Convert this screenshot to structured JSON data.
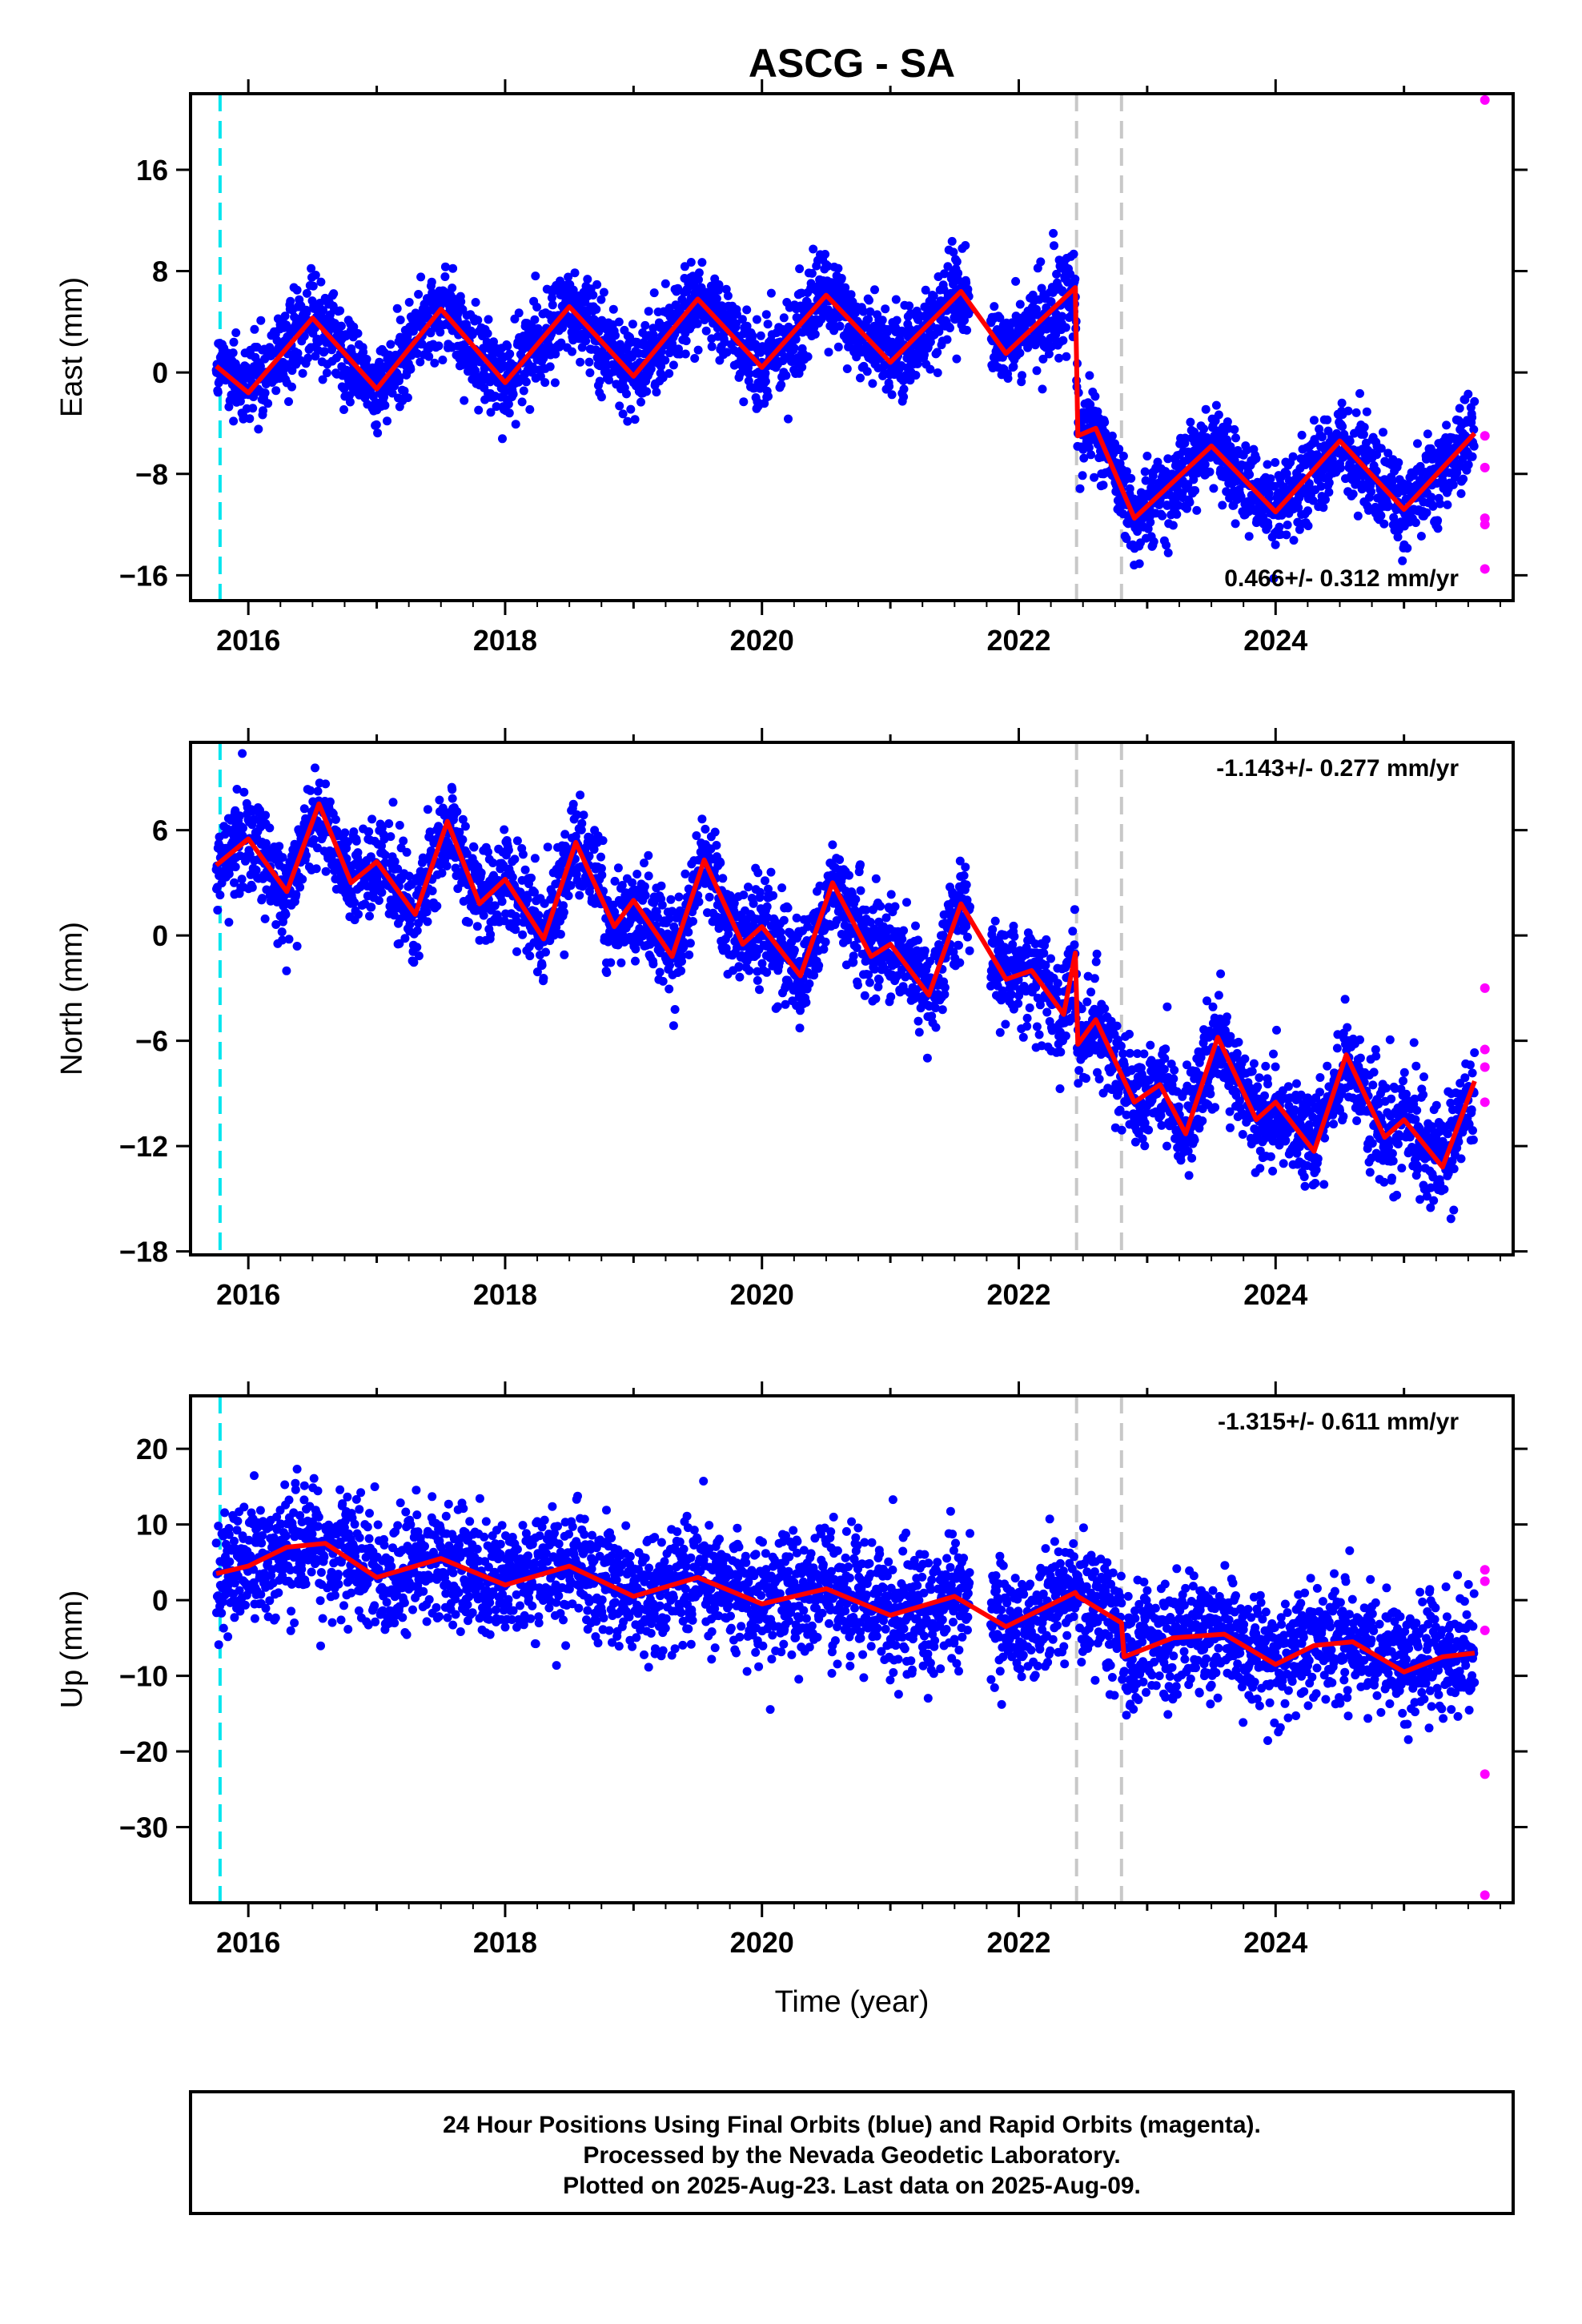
{
  "title": "ASCG - SA",
  "xlabel": "Time (year)",
  "caption": [
    "24 Hour Positions Using Final Orbits (blue) and Rapid Orbits (magenta).",
    "Processed by the Nevada Geodetic Laboratory.",
    "Plotted on 2025-Aug-23. Last data on 2025-Aug-09."
  ],
  "colors": {
    "final": "#0000ff",
    "rapid": "#ff00ff",
    "model": "#ff0000",
    "antenna_change": "#00e5ee",
    "equipment_change": "#c8c8c8"
  },
  "chart_data": [
    {
      "type": "scatter",
      "name": "east",
      "ylabel": "East (mm)",
      "rate_text": "0.466+/- 0.312 mm/yr",
      "xlim": [
        2015.55,
        2025.85
      ],
      "ylim": [
        -18,
        22
      ],
      "xticks": [
        2016,
        2018,
        2020,
        2022,
        2024
      ],
      "yticks": [
        -16,
        -8,
        0,
        8,
        16
      ],
      "antenna_change_x": [
        2015.78
      ],
      "equipment_change_x": [
        2022.45,
        2022.8
      ],
      "final_start": 2015.75,
      "final_end": 2025.55,
      "gap": [
        2021.62,
        2021.78
      ],
      "trend_rate": 0.55,
      "noise_sd": 1.7,
      "annual_amp": 3.1,
      "annual_phase": 0.35,
      "semiannual_amp": 0.6,
      "model_points": [
        [
          2015.75,
          0.5
        ],
        [
          2016.0,
          -1.6
        ],
        [
          2016.5,
          4.3
        ],
        [
          2017.0,
          -1.3
        ],
        [
          2017.5,
          5.0
        ],
        [
          2018.0,
          -0.8
        ],
        [
          2018.5,
          5.2
        ],
        [
          2019.0,
          -0.3
        ],
        [
          2019.5,
          5.8
        ],
        [
          2020.0,
          0.4
        ],
        [
          2020.5,
          6.1
        ],
        [
          2021.0,
          0.8
        ],
        [
          2021.55,
          6.4
        ],
        [
          2021.9,
          1.5
        ],
        [
          2022.44,
          6.7
        ],
        [
          2022.46,
          -5.0
        ],
        [
          2022.6,
          -4.4
        ],
        [
          2022.9,
          -11.5
        ],
        [
          2023.5,
          -5.8
        ],
        [
          2024.0,
          -11.0
        ],
        [
          2024.5,
          -5.4
        ],
        [
          2025.0,
          -10.8
        ],
        [
          2025.55,
          -4.8
        ]
      ],
      "rapid": [
        [
          2025.63,
          21.5
        ],
        [
          2025.63,
          -5.0
        ],
        [
          2025.63,
          -7.5
        ],
        [
          2025.63,
          -11.5
        ],
        [
          2025.63,
          -12.0
        ],
        [
          2025.63,
          -15.5
        ]
      ]
    },
    {
      "type": "scatter",
      "name": "north",
      "ylabel": "North (mm)",
      "rate_text": "-1.143+/- 0.277 mm/yr",
      "xlim": [
        2015.55,
        2025.85
      ],
      "ylim": [
        -18.2,
        11
      ],
      "xticks": [
        2016,
        2018,
        2020,
        2022,
        2024
      ],
      "yticks": [
        -18,
        -12,
        -6,
        0,
        6
      ],
      "antenna_change_x": [
        2015.78
      ],
      "equipment_change_x": [
        2022.45,
        2022.8
      ],
      "final_start": 2015.75,
      "final_end": 2025.55,
      "gap": [
        2021.62,
        2021.78
      ],
      "trend_rate": -1.1,
      "noise_sd": 1.4,
      "annual_amp": 2.4,
      "annual_phase": 0.25,
      "semiannual_amp": 1.0,
      "model_points": [
        [
          2015.75,
          4.0
        ],
        [
          2016.0,
          5.5
        ],
        [
          2016.3,
          2.5
        ],
        [
          2016.55,
          7.5
        ],
        [
          2016.8,
          3.0
        ],
        [
          2017.0,
          4.2
        ],
        [
          2017.3,
          1.2
        ],
        [
          2017.55,
          6.5
        ],
        [
          2017.8,
          1.8
        ],
        [
          2018.0,
          3.2
        ],
        [
          2018.3,
          -0.2
        ],
        [
          2018.55,
          5.3
        ],
        [
          2018.85,
          0.5
        ],
        [
          2019.0,
          2.0
        ],
        [
          2019.3,
          -1.2
        ],
        [
          2019.55,
          4.3
        ],
        [
          2019.85,
          -0.5
        ],
        [
          2020.0,
          0.5
        ],
        [
          2020.3,
          -2.3
        ],
        [
          2020.55,
          3.0
        ],
        [
          2020.85,
          -1.2
        ],
        [
          2021.0,
          -0.5
        ],
        [
          2021.3,
          -3.4
        ],
        [
          2021.55,
          1.8
        ],
        [
          2021.9,
          -2.5
        ],
        [
          2022.1,
          -2.0
        ],
        [
          2022.35,
          -4.5
        ],
        [
          2022.44,
          -1.0
        ],
        [
          2022.46,
          -6.2
        ],
        [
          2022.6,
          -4.8
        ],
        [
          2022.9,
          -9.5
        ],
        [
          2023.1,
          -8.5
        ],
        [
          2023.3,
          -11.3
        ],
        [
          2023.55,
          -5.8
        ],
        [
          2023.85,
          -10.5
        ],
        [
          2024.0,
          -9.5
        ],
        [
          2024.3,
          -12.3
        ],
        [
          2024.55,
          -6.8
        ],
        [
          2024.85,
          -11.5
        ],
        [
          2025.0,
          -10.5
        ],
        [
          2025.3,
          -13.2
        ],
        [
          2025.55,
          -8.3
        ]
      ],
      "rapid": [
        [
          2025.63,
          -3.0
        ],
        [
          2025.63,
          -6.5
        ],
        [
          2025.63,
          -7.5
        ],
        [
          2025.63,
          -9.5
        ]
      ]
    },
    {
      "type": "scatter",
      "name": "up",
      "ylabel": "Up (mm)",
      "rate_text": "-1.315+/- 0.611 mm/yr",
      "xlim": [
        2015.55,
        2025.85
      ],
      "ylim": [
        -40,
        27
      ],
      "xticks": [
        2016,
        2018,
        2020,
        2022,
        2024
      ],
      "yticks": [
        -30,
        -20,
        -10,
        0,
        10,
        20
      ],
      "antenna_change_x": [
        2015.78
      ],
      "equipment_change_x": [
        2022.45,
        2022.8
      ],
      "final_start": 2015.75,
      "final_end": 2025.55,
      "gap": [
        2021.62,
        2021.78
      ],
      "trend_rate": -1.2,
      "noise_sd": 4.0,
      "annual_amp": 1.8,
      "annual_phase": 0.4,
      "semiannual_amp": 0.5,
      "model_points": [
        [
          2015.75,
          3.5
        ],
        [
          2016.0,
          4.5
        ],
        [
          2016.3,
          7.0
        ],
        [
          2016.6,
          7.5
        ],
        [
          2017.0,
          3.0
        ],
        [
          2017.5,
          5.5
        ],
        [
          2018.0,
          2.0
        ],
        [
          2018.5,
          4.5
        ],
        [
          2019.0,
          0.5
        ],
        [
          2019.5,
          3.0
        ],
        [
          2020.0,
          -0.5
        ],
        [
          2020.5,
          1.5
        ],
        [
          2021.0,
          -2.0
        ],
        [
          2021.5,
          0.5
        ],
        [
          2021.9,
          -3.5
        ],
        [
          2022.44,
          1.0
        ],
        [
          2022.46,
          0.5
        ],
        [
          2022.8,
          -3.0
        ],
        [
          2022.82,
          -7.5
        ],
        [
          2023.2,
          -5.0
        ],
        [
          2023.6,
          -4.5
        ],
        [
          2024.0,
          -8.5
        ],
        [
          2024.3,
          -6.0
        ],
        [
          2024.6,
          -5.5
        ],
        [
          2025.0,
          -9.5
        ],
        [
          2025.3,
          -7.5
        ],
        [
          2025.55,
          -7.0
        ]
      ],
      "rapid": [
        [
          2025.63,
          4.0
        ],
        [
          2025.63,
          2.5
        ],
        [
          2025.63,
          -4.0
        ],
        [
          2025.63,
          -23.0
        ],
        [
          2025.63,
          -39.0
        ]
      ]
    }
  ]
}
